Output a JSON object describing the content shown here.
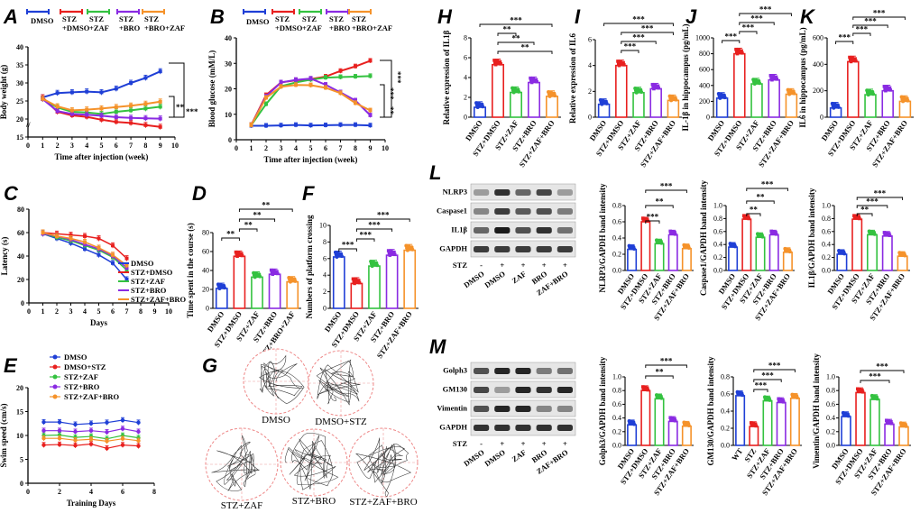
{
  "colors": {
    "DMSO": "#1f3fd6",
    "STZ+DMSO": "#e8201f",
    "STZ+ZAF": "#34c240",
    "STZ+BRO": "#8a2be2",
    "STZ+ZAF+BRO": "#f5922a"
  },
  "panel_labels": [
    "A",
    "B",
    "C",
    "D",
    "E",
    "F",
    "G",
    "H",
    "I",
    "J",
    "K",
    "L",
    "M"
  ],
  "chart_data": [
    {
      "id": "A",
      "type": "line",
      "legend": [
        "DMSO",
        "STZ\n+DMSO",
        "STZ\n+ZAF",
        "STZ\n+BRO",
        "STZ\n+BRO+ZAF"
      ],
      "xlabel": "Time after injection (week)",
      "ylabel": "Body weight (g)",
      "xlim": [
        0,
        10
      ],
      "ylim": [
        15,
        40
      ],
      "xticks": [
        "0",
        "1",
        "2",
        "3",
        "4",
        "5",
        "6",
        "7",
        "8",
        "9",
        "10"
      ],
      "yticks": [
        "15",
        "20",
        "25",
        "30",
        "35",
        "40"
      ],
      "x": [
        1,
        2,
        3,
        4,
        5,
        6,
        7,
        8,
        9
      ],
      "series": [
        {
          "name": "DMSO",
          "values": [
            26,
            27.2,
            27.4,
            27.6,
            27.4,
            28.4,
            30,
            31.4,
            33.2
          ]
        },
        {
          "name": "STZ+DMSO",
          "values": [
            26,
            22,
            21,
            20.6,
            19.8,
            19.2,
            18.9,
            18.3,
            17.8
          ]
        },
        {
          "name": "STZ+ZAF",
          "values": [
            25.5,
            23.2,
            22,
            21.8,
            21.4,
            22,
            22.4,
            22.9,
            23.4
          ]
        },
        {
          "name": "STZ+BRO",
          "values": [
            25.5,
            22.2,
            21.4,
            21.2,
            20.9,
            20.5,
            20.3,
            20.2,
            20.1
          ]
        },
        {
          "name": "STZ+ZAF+BRO",
          "values": [
            25.6,
            23.5,
            22.4,
            22.6,
            22.9,
            23.3,
            23.7,
            24.2,
            24.8
          ]
        }
      ],
      "sig": [
        "**",
        "***"
      ]
    },
    {
      "id": "B",
      "type": "line",
      "legend": [
        "DMSO",
        "STZ\n+DMSO",
        "STZ\n+ZAF",
        "STZ\n+BRO",
        "STZ\n+BRO+ZAF"
      ],
      "xlabel": "Time after injection (week)",
      "ylabel": "Blood glucose (mM/L)",
      "xlim": [
        0,
        10
      ],
      "ylim": [
        0,
        40
      ],
      "xticks": [
        "0",
        "1",
        "2",
        "3",
        "4",
        "5",
        "6",
        "7",
        "8",
        "9",
        "10"
      ],
      "yticks": [
        "0",
        "10",
        "20",
        "30",
        "40"
      ],
      "x": [
        1,
        2,
        3,
        4,
        5,
        6,
        7,
        8,
        9
      ],
      "series": [
        {
          "name": "DMSO",
          "values": [
            5.5,
            5.5,
            5.6,
            5.8,
            5.6,
            5.7,
            5.8,
            5.8,
            5.6
          ]
        },
        {
          "name": "STZ+DMSO",
          "values": [
            5.8,
            17.5,
            22.5,
            23.3,
            23.8,
            24.8,
            27,
            28.8,
            31
          ]
        },
        {
          "name": "STZ+ZAF",
          "values": [
            5.7,
            14,
            21,
            22.5,
            23.6,
            24.4,
            24.6,
            24.8,
            25
          ]
        },
        {
          "name": "STZ+BRO",
          "values": [
            5.7,
            17,
            22.5,
            23.5,
            24,
            21.6,
            18.6,
            15.4,
            9.6
          ]
        },
        {
          "name": "STZ+ZAF+BRO",
          "values": [
            5.7,
            16.5,
            20.8,
            21.5,
            21.4,
            20.4,
            18.3,
            14.4,
            11.5
          ]
        }
      ],
      "sig": [
        "***",
        "***",
        "**"
      ]
    },
    {
      "id": "C",
      "type": "line",
      "legend": [
        "DMSO",
        "STZ+DMSO",
        "STZ+ZAF",
        "STZ+BRO",
        "STZ+ZAF+BRO"
      ],
      "xlabel": "Days",
      "ylabel": "Latency (s)",
      "xlim": [
        0,
        10
      ],
      "ylim": [
        0,
        80
      ],
      "xticks": [
        "0",
        "1",
        "2",
        "3",
        "4",
        "5",
        "6",
        "7",
        "8",
        "9",
        "10"
      ],
      "yticks": [
        "0",
        "20",
        "40",
        "60",
        "80"
      ],
      "x": [
        1,
        2,
        3,
        4,
        5,
        6,
        7
      ],
      "series": [
        {
          "name": "DMSO",
          "values": [
            59,
            55,
            51,
            46,
            41,
            34,
            20
          ]
        },
        {
          "name": "STZ+DMSO",
          "values": [
            60,
            59,
            58,
            57,
            55,
            49,
            38
          ]
        },
        {
          "name": "STZ+ZAF",
          "values": [
            59,
            56,
            53,
            49,
            45,
            39,
            28
          ]
        },
        {
          "name": "STZ+BRO",
          "values": [
            59,
            57,
            54,
            50,
            46,
            40,
            30
          ]
        },
        {
          "name": "STZ+ZAF+BRO",
          "values": [
            60,
            57,
            55,
            52,
            47,
            41,
            32
          ]
        }
      ]
    },
    {
      "id": "D",
      "type": "bar",
      "categories": [
        "DMSO",
        "STZ+DMSO",
        "STZ+ZAF",
        "STZ+BRO",
        "STZ+BRO+ZAF"
      ],
      "values": [
        21,
        55,
        33,
        36,
        28
      ],
      "ylabel": "Time spent in the course (s)",
      "ylim": [
        0,
        80
      ],
      "yticks": [
        "0",
        "20",
        "40",
        "60",
        "80"
      ],
      "sig": [
        "**",
        "**",
        "**",
        "**"
      ]
    },
    {
      "id": "F",
      "type": "bar",
      "categories": [
        "DMSO",
        "STZ+DMSO",
        "STZ+ZAF",
        "STZ+BRO",
        "STZ+ZAF+BRO"
      ],
      "values": [
        6.2,
        3,
        5.1,
        6.4,
        7
      ],
      "ylabel": "Numbers of platform crossing",
      "ylim": [
        0,
        10
      ],
      "yticks": [
        "0",
        "2",
        "4",
        "6",
        "8",
        "10"
      ],
      "sig": [
        "***",
        "***",
        "***",
        "***"
      ]
    },
    {
      "id": "E",
      "type": "line",
      "legend": [
        "DMSO",
        "DMSO+STZ",
        "STZ+ZAF",
        "STZ+BRO",
        "STZ+ZAF+BRO"
      ],
      "xlabel": "Training Days",
      "ylabel": "Swim speed (cm/s)",
      "xlim": [
        0,
        8
      ],
      "ylim": [
        0,
        20
      ],
      "xticks": [
        "0",
        "2",
        "4",
        "6",
        "8"
      ],
      "yticks": [
        "0",
        "5",
        "10",
        "15",
        "20"
      ],
      "x": [
        1,
        2,
        3,
        4,
        5,
        6,
        7
      ],
      "series": [
        {
          "name": "DMSO",
          "values": [
            12.8,
            12.8,
            12.3,
            12.5,
            12.7,
            13.2,
            12.7
          ]
        },
        {
          "name": "DMSO+STZ",
          "values": [
            8,
            8.1,
            7.9,
            8.2,
            7.3,
            8,
            7.8
          ]
        },
        {
          "name": "STZ+ZAF",
          "values": [
            10,
            10.1,
            9.6,
            9.8,
            9.3,
            10,
            9.5
          ]
        },
        {
          "name": "STZ+BRO",
          "values": [
            11,
            11,
            10.8,
            11,
            10.7,
            11.4,
            10.8
          ]
        },
        {
          "name": "STZ+ZAF+BRO",
          "values": [
            9.4,
            9.4,
            9,
            9.2,
            8.8,
            9.3,
            8.9
          ]
        }
      ]
    },
    {
      "id": "H",
      "type": "bar",
      "categories": [
        "DMSO",
        "STZ+DMSO",
        "STZ+ZAF",
        "STZ+BRO",
        "STZ+ZAF+BRO"
      ],
      "values": [
        1,
        5.3,
        2.5,
        3.5,
        2.1
      ],
      "ylabel": "Relative expression of IL1β",
      "ylim": [
        0,
        8
      ],
      "yticks": [
        "0",
        "2",
        "4",
        "6",
        "8"
      ],
      "sig": [
        "**",
        "**",
        "**",
        "***"
      ]
    },
    {
      "id": "I",
      "type": "bar",
      "categories": [
        "DMSO",
        "STZ+DMSO",
        "STZ+ZAF",
        "STZ+BRO",
        "STZ+ZAF+BRO"
      ],
      "values": [
        1,
        4,
        1.9,
        2.2,
        1.3
      ],
      "ylabel": "Relative expression of IL6",
      "ylim": [
        0,
        6
      ],
      "yticks": [
        "0",
        "2",
        "4",
        "6"
      ],
      "sig": [
        "***",
        "***",
        "***",
        "***"
      ]
    },
    {
      "id": "J",
      "type": "bar",
      "categories": [
        "DMSO",
        "STZ+DMSO",
        "STZ+ZAF",
        "STZ+BRO",
        "STZ+ZAF+BRO"
      ],
      "values": [
        240,
        800,
        420,
        470,
        290
      ],
      "ylabel": "IL-1β in hippocampus (pg/mL)",
      "ylim": [
        0,
        1000
      ],
      "yticks": [
        "0",
        "200",
        "400",
        "600",
        "800",
        "1000"
      ],
      "sig": [
        "***",
        "***",
        "***",
        "***"
      ]
    },
    {
      "id": "K",
      "type": "bar",
      "categories": [
        "DMSO",
        "STZ+DMSO",
        "STZ+ZAF",
        "STZ+BRO",
        "STZ+ZAF+BRO"
      ],
      "values": [
        70,
        420,
        170,
        200,
        120
      ],
      "ylabel": "IL6 in hippocampus (pg/mL)",
      "ylim": [
        0,
        600
      ],
      "yticks": [
        "0",
        "200",
        "400",
        "600"
      ],
      "sig": [
        "***",
        "***",
        "***",
        "***"
      ]
    },
    {
      "id": "L1",
      "type": "bar",
      "categories": [
        "DMSO",
        "STZ+DMSO",
        "STZ+ZAF",
        "STZ+BRO",
        "STZ+ZAF+BRO"
      ],
      "values": [
        0.26,
        0.6,
        0.33,
        0.44,
        0.27
      ],
      "ylabel": "NLRP3/GAPDH band intensity",
      "ylim": [
        0,
        0.8
      ],
      "yticks": [
        "0.0",
        "0.2",
        "0.4",
        "0.6",
        "0.8"
      ],
      "sig": [
        "***",
        "**",
        "***"
      ]
    },
    {
      "id": "L2",
      "type": "bar",
      "categories": [
        "DMSO",
        "STZ+DMSO",
        "STZ+ZAF",
        "STZ+BRO",
        "STZ+ZAF+BRO"
      ],
      "values": [
        0.36,
        0.79,
        0.51,
        0.55,
        0.28
      ],
      "ylabel": "Caspase1/GAPDH band intensity",
      "ylim": [
        0,
        1
      ],
      "yticks": [
        "0.0",
        "0.2",
        "0.4",
        "0.6",
        "0.8",
        "1.0"
      ],
      "sig": [
        "**",
        "**",
        "***"
      ]
    },
    {
      "id": "L3",
      "type": "bar",
      "categories": [
        "DMSO",
        "STZ+DMSO",
        "STZ+ZAF",
        "STZ+BRO",
        "STZ+ZAF+BRO"
      ],
      "values": [
        0.25,
        0.79,
        0.55,
        0.53,
        0.22
      ],
      "ylabel": "IL1β/GAPDH band intensity",
      "ylim": [
        0,
        1
      ],
      "yticks": [
        "0.0",
        "0.2",
        "0.4",
        "0.6",
        "0.8",
        "1.0"
      ],
      "sig": [
        "**",
        "***",
        "***"
      ]
    },
    {
      "id": "M1",
      "type": "bar",
      "categories": [
        "DMSO",
        "STZ+DMSO",
        "STZ+ZAF",
        "STZ+BRO",
        "STZ+ZAF+BRO"
      ],
      "values": [
        0.3,
        0.8,
        0.68,
        0.35,
        0.28
      ],
      "ylabel": "Golph3/GAPDH band intensity",
      "ylim": [
        0,
        1
      ],
      "yticks": [
        "0.0",
        "0.2",
        "0.4",
        "0.6",
        "0.8",
        "1.0"
      ],
      "sig": [
        "**",
        "***"
      ]
    },
    {
      "id": "M2",
      "type": "bar",
      "categories": [
        "WT",
        "STZ",
        "STZ+ZAF",
        "STZ+BRO",
        "STZ+ZAF+BRO"
      ],
      "values": [
        0.58,
        0.22,
        0.52,
        0.5,
        0.55
      ],
      "ylabel": "GM130/GAPDH band intensity",
      "ylim": [
        0,
        0.8
      ],
      "yticks": [
        "0.0",
        "0.2",
        "0.4",
        "0.6",
        "0.8"
      ],
      "sig": [
        "***",
        "***",
        "***"
      ]
    },
    {
      "id": "M3",
      "type": "bar",
      "categories": [
        "DMSO",
        "STZ+DMSO",
        "STZ+ZAF",
        "STZ+BRO",
        "STZ+ZAF+BRO"
      ],
      "values": [
        0.42,
        0.77,
        0.67,
        0.31,
        0.27
      ],
      "ylabel": "Vimentin/GAPDH band intensity",
      "ylim": [
        0,
        1
      ],
      "yticks": [
        "0.0",
        "0.2",
        "0.4",
        "0.6",
        "0.8",
        "1.0"
      ],
      "sig": [
        "***",
        "***"
      ]
    }
  ],
  "western_L": {
    "rows": [
      "NLRP3",
      "Caspase1",
      "IL1β",
      "GAPDH"
    ],
    "stz_label": "STZ",
    "stz_signs": [
      "-",
      "+",
      "+",
      "+",
      "+"
    ],
    "lanes": [
      "DMSO",
      "DMSO",
      "ZAF",
      "BRO",
      "ZAF+BRO"
    ]
  },
  "western_M": {
    "rows": [
      "Golph3",
      "GM130",
      "Vimentin",
      "GAPDH"
    ],
    "stz_label": "STZ",
    "stz_signs": [
      "-",
      "+",
      "+",
      "+",
      "+"
    ],
    "lanes": [
      "DMSO",
      "DMSO",
      "ZAF",
      "BRO",
      "ZAF+BRO"
    ]
  },
  "panel_G": {
    "captions": [
      "DMSO",
      "DMSO+STZ",
      "STZ+ZAF",
      "STZ+BRO",
      "STZ+ZAF+BRO"
    ]
  }
}
